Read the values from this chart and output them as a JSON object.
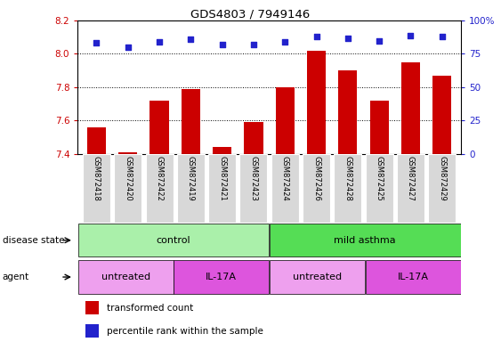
{
  "title": "GDS4803 / 7949146",
  "samples": [
    "GSM872418",
    "GSM872420",
    "GSM872422",
    "GSM872419",
    "GSM872421",
    "GSM872423",
    "GSM872424",
    "GSM872426",
    "GSM872428",
    "GSM872425",
    "GSM872427",
    "GSM872429"
  ],
  "bar_values": [
    7.56,
    7.41,
    7.72,
    7.79,
    7.44,
    7.59,
    7.8,
    8.02,
    7.9,
    7.72,
    7.95,
    7.87
  ],
  "dot_values": [
    83,
    80,
    84,
    86,
    82,
    82,
    84,
    88,
    87,
    85,
    89,
    88
  ],
  "ylim_left": [
    7.4,
    8.2
  ],
  "ylim_right": [
    0,
    100
  ],
  "yticks_left": [
    7.4,
    7.6,
    7.8,
    8.0,
    8.2
  ],
  "yticks_right": [
    0,
    25,
    50,
    75,
    100
  ],
  "bar_color": "#cc0000",
  "dot_color": "#2222cc",
  "grid_color": "#000000",
  "disease_state_groups": [
    {
      "label": "control",
      "start": 0,
      "end": 6,
      "color": "#aaf0aa"
    },
    {
      "label": "mild asthma",
      "start": 6,
      "end": 12,
      "color": "#55dd55"
    }
  ],
  "agent_groups": [
    {
      "label": "untreated",
      "start": 0,
      "end": 3,
      "color": "#eea0ee"
    },
    {
      "label": "IL-17A",
      "start": 3,
      "end": 6,
      "color": "#dd55dd"
    },
    {
      "label": "untreated",
      "start": 6,
      "end": 9,
      "color": "#eea0ee"
    },
    {
      "label": "IL-17A",
      "start": 9,
      "end": 12,
      "color": "#dd55dd"
    }
  ],
  "legend_bar_label": "transformed count",
  "legend_dot_label": "percentile rank within the sample",
  "tick_label_color": "#cc0000",
  "right_tick_color": "#2222cc",
  "ds_label": "disease state",
  "agent_label": "agent"
}
